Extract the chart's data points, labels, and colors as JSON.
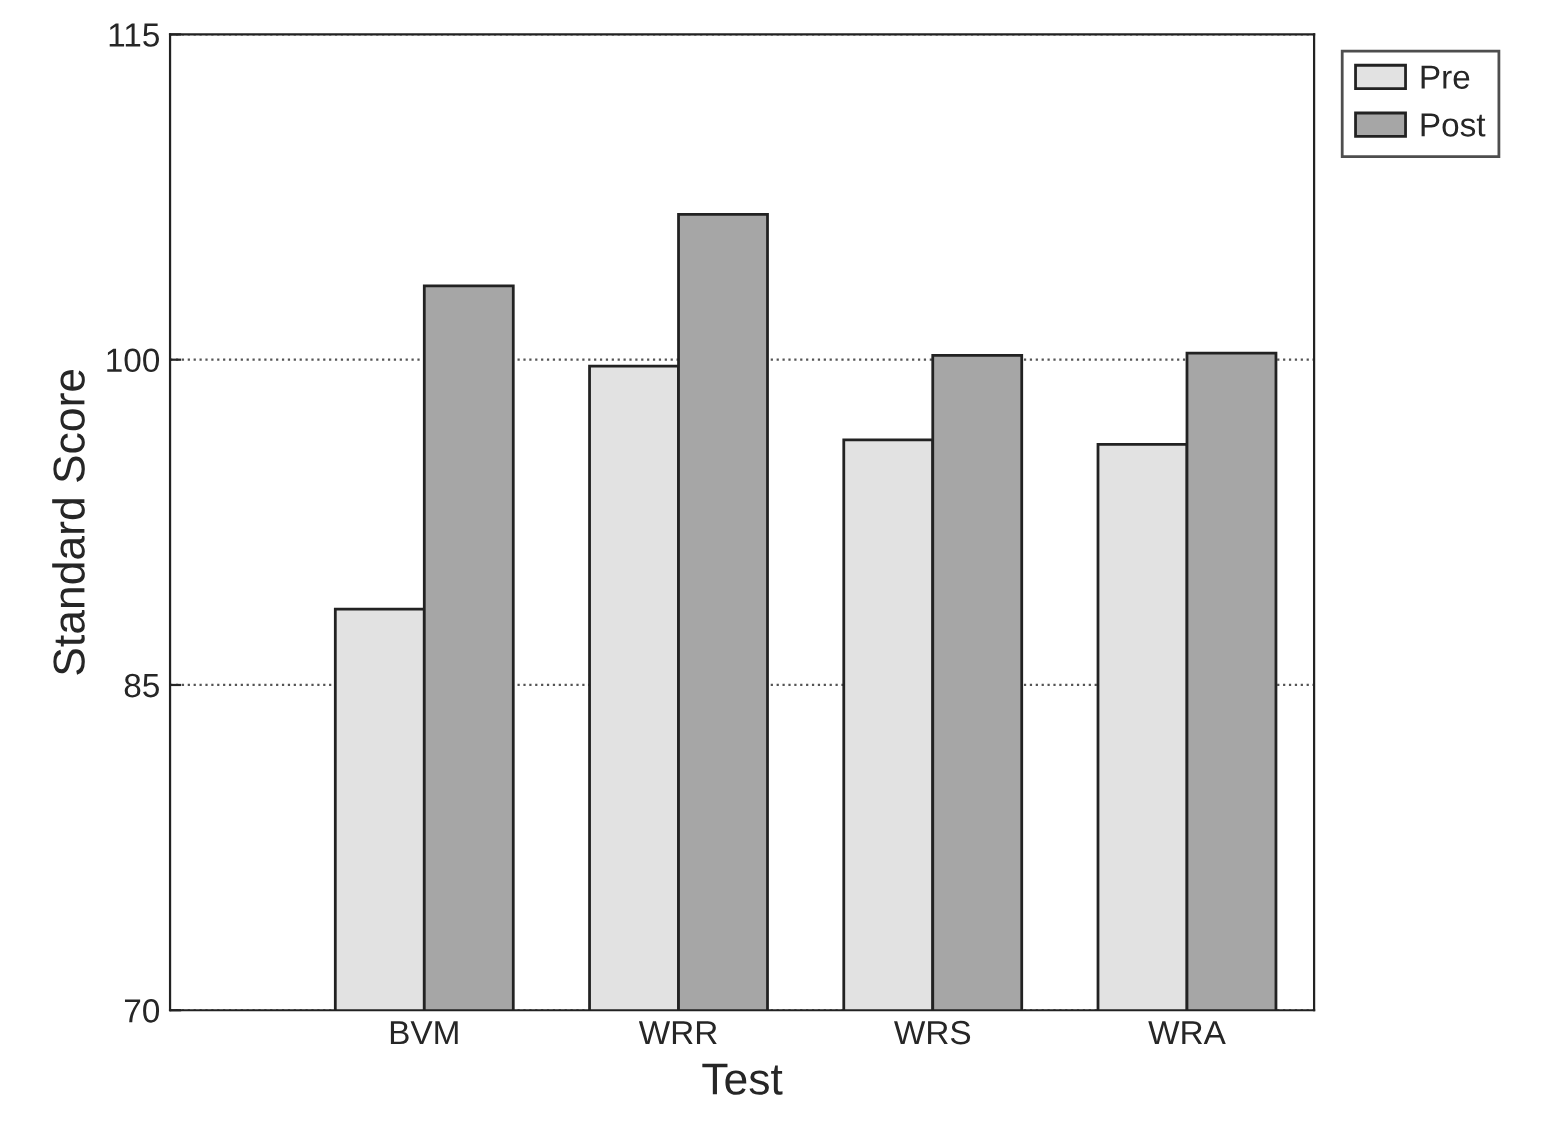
{
  "chart_data": {
    "type": "bar",
    "xlabel": "Test",
    "ylabel": "Standard Score",
    "categories": [
      "BVM",
      "WRR",
      "WRS",
      "WRA"
    ],
    "series": [
      {
        "name": "Pre",
        "color": "#e2e2e2",
        "values": [
          88.5,
          99.7,
          96.3,
          96.1
        ]
      },
      {
        "name": "Post",
        "color": "#a6a6a6",
        "values": [
          103.4,
          106.7,
          100.2,
          100.3
        ]
      }
    ],
    "ylim": [
      70,
      115
    ],
    "yticks": [
      70,
      85,
      100,
      115
    ],
    "grid": "y",
    "legend": "top right"
  }
}
